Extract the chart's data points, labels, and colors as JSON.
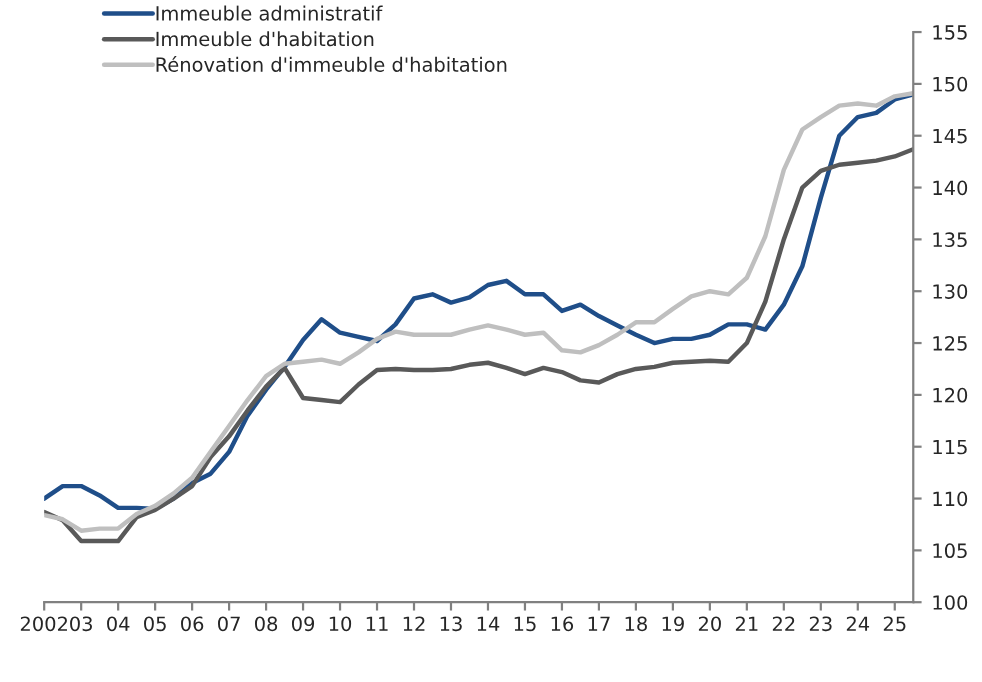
{
  "chart_data": {
    "type": "line",
    "x": [
      2002,
      2002.5,
      2003,
      2003.5,
      2004,
      2004.5,
      2005,
      2005.5,
      2006,
      2006.5,
      2007,
      2007.5,
      2008,
      2008.5,
      2009,
      2009.5,
      2010,
      2010.5,
      2011,
      2011.5,
      2012,
      2012.5,
      2013,
      2013.5,
      2014,
      2014.5,
      2015,
      2015.5,
      2016,
      2016.5,
      2017,
      2017.5,
      2018,
      2018.5,
      2019,
      2019.5,
      2020,
      2020.5,
      2021,
      2021.5,
      2022,
      2022.5,
      2023,
      2023.5,
      2024,
      2024.5,
      2025,
      2025.5
    ],
    "series": [
      {
        "name": "Immeuble administratif",
        "color": "#1f4e89",
        "values": [
          110,
          111.2,
          111.2,
          110.3,
          109.1,
          109.1,
          109,
          110,
          111.5,
          112.4,
          114.5,
          118,
          120.5,
          122.7,
          125.3,
          127.3,
          126,
          125.6,
          125.2,
          126.8,
          129.3,
          129.7,
          128.9,
          129.4,
          130.6,
          131,
          129.7,
          129.7,
          128.1,
          128.7,
          127.6,
          126.7,
          125.8,
          125,
          125.4,
          125.4,
          125.8,
          126.8,
          126.8,
          126.3,
          128.7,
          132.4,
          139,
          145,
          146.8,
          147.2,
          148.5,
          149
        ]
      },
      {
        "name": "Immeuble d'habitation",
        "color": "#595959",
        "values": [
          108.7,
          107.9,
          105.9,
          105.9,
          105.9,
          108.2,
          108.9,
          110,
          111.2,
          114,
          116,
          118.5,
          120.8,
          122.6,
          119.7,
          119.5,
          119.3,
          121,
          122.4,
          122.5,
          122.4,
          122.4,
          122.5,
          122.9,
          123.1,
          122.6,
          122,
          122.6,
          122.2,
          121.4,
          121.2,
          122,
          122.5,
          122.7,
          123.1,
          123.2,
          123.3,
          123.2,
          125,
          129,
          135,
          140,
          141.6,
          142.2,
          142.4,
          142.6,
          143,
          143.7
        ]
      },
      {
        "name": "Rénovation d'immeuble d'habitation",
        "color": "#bfbfbf",
        "values": [
          108.4,
          108,
          106.9,
          107.1,
          107.1,
          108.5,
          109.3,
          110.5,
          112,
          114.5,
          117,
          119.5,
          121.8,
          123,
          123.2,
          123.4,
          123,
          124.1,
          125.4,
          126.1,
          125.8,
          125.8,
          125.8,
          126.3,
          126.7,
          126.3,
          125.8,
          126,
          124.3,
          124.1,
          124.8,
          125.8,
          127,
          127,
          128.3,
          129.5,
          130,
          129.7,
          131.3,
          135.3,
          141.7,
          145.6,
          146.8,
          147.9,
          148.1,
          147.9,
          148.8,
          149.1
        ]
      }
    ],
    "xlim": [
      2002,
      2025.5
    ],
    "xticks": [
      2002,
      {
        "value": 2003,
        "label": "03"
      },
      {
        "value": 2004,
        "label": "04"
      },
      {
        "value": 2005,
        "label": "05"
      },
      {
        "value": 2006,
        "label": "06"
      },
      {
        "value": 2007,
        "label": "07"
      },
      {
        "value": 2008,
        "label": "08"
      },
      {
        "value": 2009,
        "label": "09"
      },
      {
        "value": 2010,
        "label": "10"
      },
      {
        "value": 2011,
        "label": "11"
      },
      {
        "value": 2012,
        "label": "12"
      },
      {
        "value": 2013,
        "label": "13"
      },
      {
        "value": 2014,
        "label": "14"
      },
      {
        "value": 2015,
        "label": "15"
      },
      {
        "value": 2016,
        "label": "16"
      },
      {
        "value": 2017,
        "label": "17"
      },
      {
        "value": 2018,
        "label": "18"
      },
      {
        "value": 2019,
        "label": "19"
      },
      {
        "value": 2020,
        "label": "20"
      },
      {
        "value": 2021,
        "label": "21"
      },
      {
        "value": 2022,
        "label": "22"
      },
      {
        "value": 2023,
        "label": "23"
      },
      {
        "value": 2024,
        "label": "24"
      },
      {
        "value": 2025,
        "label": "25"
      }
    ],
    "ylim": [
      100,
      155
    ],
    "yticks": [
      100,
      105,
      110,
      115,
      120,
      125,
      130,
      135,
      140,
      145,
      150,
      155
    ],
    "grid": false,
    "legend": "top left",
    "marker": "none",
    "line_style": "solid"
  }
}
